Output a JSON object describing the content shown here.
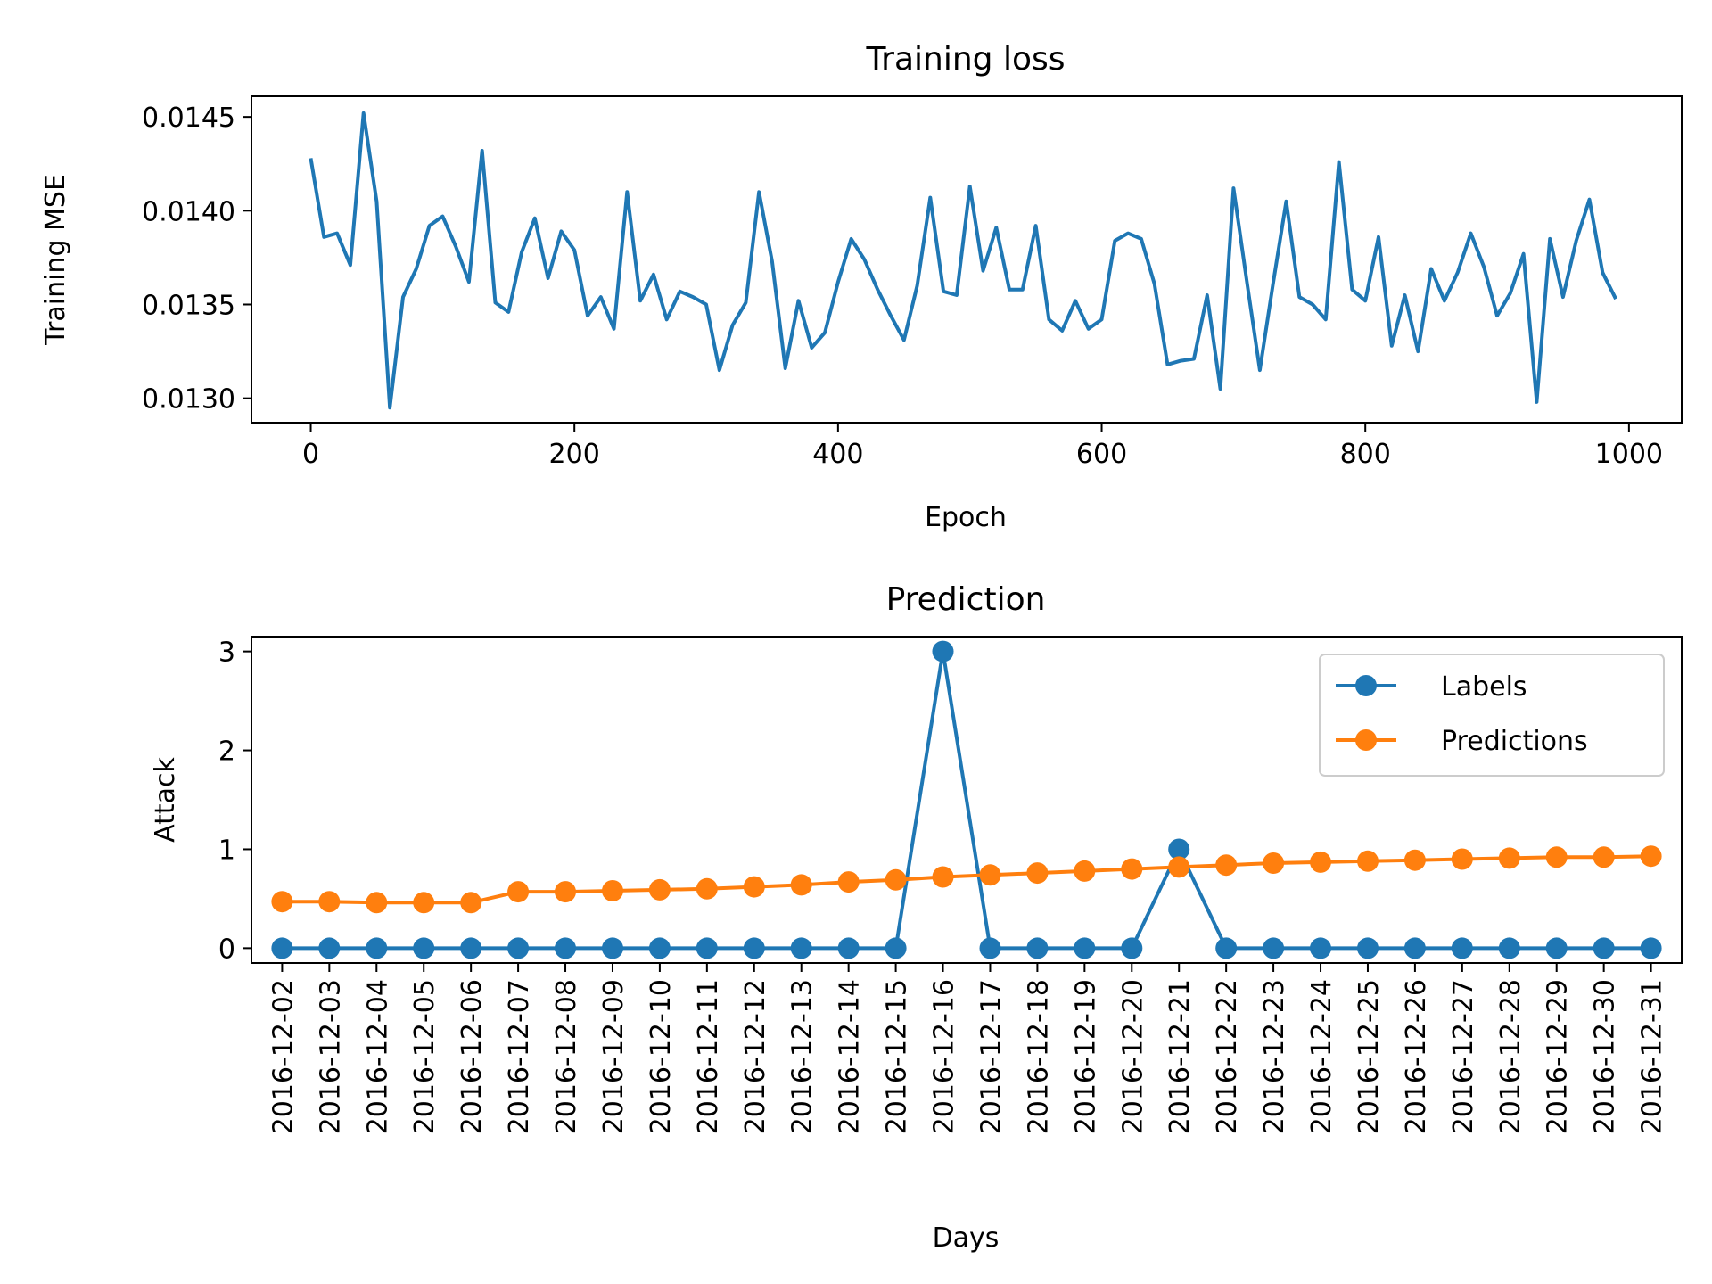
{
  "chart_data": [
    {
      "type": "line",
      "title": "Training loss",
      "xlabel": "Epoch",
      "ylabel": "Training MSE",
      "xlim": [
        -45,
        1040
      ],
      "ylim": [
        0.01287,
        0.01461
      ],
      "xticks": [
        0,
        200,
        400,
        600,
        800,
        1000
      ],
      "yticks": [
        0.013,
        0.0135,
        0.014,
        0.0145
      ],
      "xtick_labels": [
        "0",
        "200",
        "400",
        "600",
        "800",
        "1000"
      ],
      "ytick_labels": [
        "0.0130",
        "0.0135",
        "0.0140",
        "0.0145"
      ],
      "grid": false,
      "series": [
        {
          "color": "#1f77b4",
          "x": [
            0,
            10,
            20,
            30,
            40,
            50,
            60,
            70,
            80,
            90,
            100,
            110,
            120,
            130,
            140,
            150,
            160,
            170,
            180,
            190,
            200,
            210,
            220,
            230,
            240,
            250,
            260,
            270,
            280,
            290,
            300,
            310,
            320,
            330,
            340,
            350,
            360,
            370,
            380,
            390,
            400,
            410,
            420,
            430,
            440,
            450,
            460,
            470,
            480,
            490,
            500,
            510,
            520,
            530,
            540,
            550,
            560,
            570,
            580,
            590,
            600,
            610,
            620,
            630,
            640,
            650,
            660,
            670,
            680,
            690,
            700,
            710,
            720,
            730,
            740,
            750,
            760,
            770,
            780,
            790,
            800,
            810,
            820,
            830,
            840,
            850,
            860,
            870,
            880,
            890,
            900,
            910,
            920,
            930,
            940,
            950,
            960,
            970,
            980,
            990
          ],
          "y": [
            0.01428,
            0.01386,
            0.01388,
            0.01371,
            0.01452,
            0.01405,
            0.01295,
            0.01354,
            0.01369,
            0.01392,
            0.01397,
            0.01381,
            0.01362,
            0.01432,
            0.01351,
            0.01346,
            0.01378,
            0.01396,
            0.01364,
            0.01389,
            0.01379,
            0.01344,
            0.01354,
            0.01337,
            0.0141,
            0.01352,
            0.01366,
            0.01342,
            0.01357,
            0.01354,
            0.0135,
            0.01315,
            0.01339,
            0.01351,
            0.0141,
            0.01373,
            0.01316,
            0.01352,
            0.01327,
            0.01335,
            0.01362,
            0.01385,
            0.01374,
            0.01358,
            0.01344,
            0.01331,
            0.0136,
            0.01407,
            0.01357,
            0.01355,
            0.01413,
            0.01368,
            0.01391,
            0.01358,
            0.01358,
            0.01392,
            0.01342,
            0.01336,
            0.01352,
            0.01337,
            0.01342,
            0.01384,
            0.01388,
            0.01385,
            0.01361,
            0.01318,
            0.0132,
            0.01321,
            0.01355,
            0.01305,
            0.01412,
            0.01363,
            0.01315,
            0.01361,
            0.01405,
            0.01354,
            0.0135,
            0.01342,
            0.01426,
            0.01358,
            0.01352,
            0.01386,
            0.01328,
            0.01355,
            0.01325,
            0.01369,
            0.01352,
            0.01367,
            0.01388,
            0.0137,
            0.01344,
            0.01356,
            0.01377,
            0.01298,
            0.01385,
            0.01354,
            0.01384,
            0.01406,
            0.01367,
            0.01353
          ]
        }
      ]
    },
    {
      "type": "line",
      "title": "Prediction",
      "xlabel": "Days",
      "ylabel": "Attack",
      "ylim": [
        -0.15,
        3.15
      ],
      "yticks": [
        0,
        1,
        2,
        3
      ],
      "ytick_labels": [
        "0",
        "1",
        "2",
        "3"
      ],
      "grid": false,
      "legend_position": "top-right",
      "categories": [
        "2016-12-02",
        "2016-12-03",
        "2016-12-04",
        "2016-12-05",
        "2016-12-06",
        "2016-12-07",
        "2016-12-08",
        "2016-12-09",
        "2016-12-10",
        "2016-12-11",
        "2016-12-12",
        "2016-12-13",
        "2016-12-14",
        "2016-12-15",
        "2016-12-16",
        "2016-12-17",
        "2016-12-18",
        "2016-12-19",
        "2016-12-20",
        "2016-12-21",
        "2016-12-22",
        "2016-12-23",
        "2016-12-24",
        "2016-12-25",
        "2016-12-26",
        "2016-12-27",
        "2016-12-28",
        "2016-12-29",
        "2016-12-30",
        "2016-12-31"
      ],
      "series": [
        {
          "name": "Labels",
          "color": "#1f77b4",
          "marker": "circle",
          "values": [
            0,
            0,
            0,
            0,
            0,
            0,
            0,
            0,
            0,
            0,
            0,
            0,
            0,
            0,
            3,
            0,
            0,
            0,
            0,
            1,
            0,
            0,
            0,
            0,
            0,
            0,
            0,
            0,
            0,
            0
          ]
        },
        {
          "name": "Predictions",
          "color": "#ff7f0e",
          "marker": "circle",
          "values": [
            0.47,
            0.47,
            0.46,
            0.46,
            0.46,
            0.57,
            0.57,
            0.58,
            0.59,
            0.6,
            0.62,
            0.64,
            0.67,
            0.69,
            0.72,
            0.74,
            0.76,
            0.78,
            0.8,
            0.82,
            0.84,
            0.86,
            0.87,
            0.88,
            0.89,
            0.9,
            0.91,
            0.92,
            0.92,
            0.93
          ]
        }
      ]
    }
  ]
}
